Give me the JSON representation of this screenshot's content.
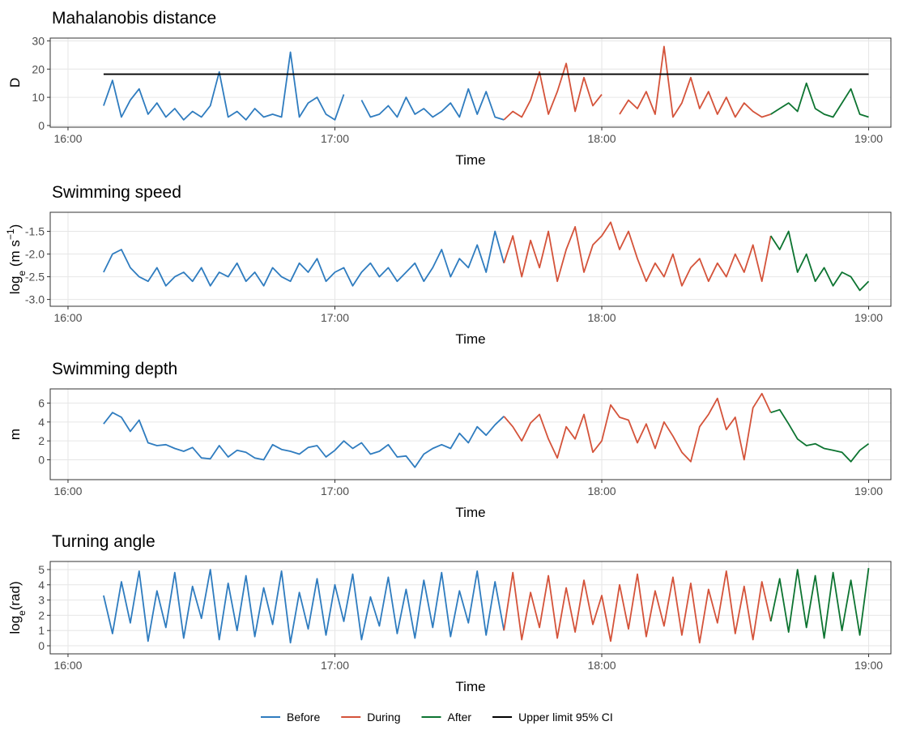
{
  "chart_data": [
    {
      "type": "line",
      "title": "Mahalanobis distance",
      "ylabel": [
        "D"
      ],
      "xlabel": "Time",
      "xlim": [
        "15:56",
        "19:05"
      ],
      "xticks": [
        "16:00",
        "17:00",
        "18:00",
        "19:00"
      ],
      "ylim": [
        -0.6,
        31
      ],
      "yticks": [
        0,
        10,
        20,
        30
      ],
      "grid": true,
      "series": [
        {
          "name": "Before",
          "color": "#2f7cbf",
          "x": [
            "16:08",
            "16:10",
            "16:12",
            "16:14",
            "16:16",
            "16:18",
            "16:20",
            "16:22",
            "16:24",
            "16:26",
            "16:28",
            "16:30",
            "16:32",
            "16:34",
            "16:36",
            "16:38",
            "16:40",
            "16:42",
            "16:44",
            "16:46",
            "16:48",
            "16:50",
            "16:52",
            "16:54",
            "16:56",
            "16:58",
            "17:00",
            "17:02",
            "17:04",
            "17:06",
            "17:08",
            "17:10",
            "17:12",
            "17:14",
            "17:16",
            "17:18",
            "17:20",
            "17:22",
            "17:24",
            "17:26",
            "17:28",
            "17:30",
            "17:32",
            "17:34",
            "17:36",
            "17:38"
          ],
          "values": [
            7,
            16,
            3,
            9,
            13,
            4,
            8,
            3,
            6,
            2,
            5,
            3,
            7,
            19,
            3,
            5,
            2,
            6,
            3,
            4,
            3,
            26,
            3,
            8,
            10,
            4,
            2,
            11,
            null,
            9,
            3,
            4,
            7,
            3,
            10,
            4,
            6,
            3,
            5,
            8,
            3,
            13,
            4,
            12,
            3,
            2
          ]
        },
        {
          "name": "During",
          "color": "#d4533a",
          "x": [
            "17:38",
            "17:40",
            "17:42",
            "17:44",
            "17:46",
            "17:48",
            "17:50",
            "17:52",
            "17:54",
            "17:56",
            "17:58",
            "18:00",
            "18:02",
            "18:04",
            "18:06",
            "18:08",
            "18:10",
            "18:12",
            "18:14",
            "18:16",
            "18:18",
            "18:20",
            "18:22",
            "18:24",
            "18:26",
            "18:28",
            "18:30",
            "18:32",
            "18:34",
            "18:36",
            "18:38"
          ],
          "values": [
            2,
            5,
            3,
            9,
            19,
            4,
            12,
            22,
            5,
            17,
            7,
            11,
            null,
            4,
            9,
            6,
            12,
            4,
            28,
            3,
            8,
            17,
            6,
            12,
            4,
            10,
            3,
            8,
            5,
            3,
            4
          ]
        },
        {
          "name": "After",
          "color": "#0d7431",
          "x": [
            "18:38",
            "18:40",
            "18:42",
            "18:44",
            "18:46",
            "18:48",
            "18:50",
            "18:52",
            "18:54",
            "18:56",
            "18:58",
            "19:00"
          ],
          "values": [
            4,
            6,
            8,
            5,
            15,
            6,
            4,
            3,
            8,
            13,
            4,
            3
          ]
        }
      ],
      "hline": {
        "name": "Upper limit 95% CI",
        "color": "#000000",
        "value": 18.2,
        "x": [
          "16:08",
          "19:00"
        ]
      }
    },
    {
      "type": "line",
      "title": "Swimming speed",
      "ylabel": [
        "log",
        "e",
        " (m s",
        "−1",
        ")"
      ],
      "xlabel": "Time",
      "xlim": [
        "15:56",
        "19:05"
      ],
      "xticks": [
        "16:00",
        "17:00",
        "18:00",
        "19:00"
      ],
      "ylim": [
        -3.15,
        -1.08
      ],
      "yticks": [
        -1.5,
        {
          "value": -2,
          "label": "-2.0"
        },
        -2.5,
        {
          "value": -3,
          "label": "-3.0"
        }
      ],
      "grid": true,
      "series": [
        {
          "name": "Before",
          "color": "#2f7cbf",
          "x": [
            "16:08",
            "16:10",
            "16:12",
            "16:14",
            "16:16",
            "16:18",
            "16:20",
            "16:22",
            "16:24",
            "16:26",
            "16:28",
            "16:30",
            "16:32",
            "16:34",
            "16:36",
            "16:38",
            "16:40",
            "16:42",
            "16:44",
            "16:46",
            "16:48",
            "16:50",
            "16:52",
            "16:54",
            "16:56",
            "16:58",
            "17:00",
            "17:02",
            "17:04",
            "17:06",
            "17:08",
            "17:10",
            "17:12",
            "17:14",
            "17:16",
            "17:18",
            "17:20",
            "17:22",
            "17:24",
            "17:26",
            "17:28",
            "17:30",
            "17:32",
            "17:34",
            "17:36",
            "17:38"
          ],
          "values": [
            -2.4,
            -2.0,
            -1.9,
            -2.3,
            -2.5,
            -2.6,
            -2.3,
            -2.7,
            -2.5,
            -2.4,
            -2.6,
            -2.3,
            -2.7,
            -2.4,
            -2.5,
            -2.2,
            -2.6,
            -2.4,
            -2.7,
            -2.3,
            -2.5,
            -2.6,
            -2.2,
            -2.4,
            -2.1,
            -2.6,
            -2.4,
            -2.3,
            -2.7,
            -2.4,
            -2.2,
            -2.5,
            -2.3,
            -2.6,
            -2.4,
            -2.2,
            -2.6,
            -2.3,
            -1.9,
            -2.5,
            -2.1,
            -2.3,
            -1.8,
            -2.4,
            -1.5,
            -2.2
          ]
        },
        {
          "name": "During",
          "color": "#d4533a",
          "x": [
            "17:38",
            "17:40",
            "17:42",
            "17:44",
            "17:46",
            "17:48",
            "17:50",
            "17:52",
            "17:54",
            "17:56",
            "17:58",
            "18:00",
            "18:02",
            "18:04",
            "18:06",
            "18:08",
            "18:10",
            "18:12",
            "18:14",
            "18:16",
            "18:18",
            "18:20",
            "18:22",
            "18:24",
            "18:26",
            "18:28",
            "18:30",
            "18:32",
            "18:34",
            "18:36",
            "18:38"
          ],
          "values": [
            -2.2,
            -1.6,
            -2.5,
            -1.7,
            -2.3,
            -1.5,
            -2.6,
            -1.9,
            -1.4,
            -2.4,
            -1.8,
            -1.6,
            -1.3,
            -1.9,
            -1.5,
            -2.1,
            -2.6,
            -2.2,
            -2.5,
            -2.0,
            -2.7,
            -2.3,
            -2.1,
            -2.6,
            -2.2,
            -2.5,
            -2.0,
            -2.4,
            -1.8,
            -2.6,
            -1.6
          ]
        },
        {
          "name": "After",
          "color": "#0d7431",
          "x": [
            "18:38",
            "18:40",
            "18:42",
            "18:44",
            "18:46",
            "18:48",
            "18:50",
            "18:52",
            "18:54",
            "18:56",
            "18:58",
            "19:00"
          ],
          "values": [
            -1.6,
            -1.9,
            -1.5,
            -2.4,
            -2.0,
            -2.6,
            -2.3,
            -2.7,
            -2.4,
            -2.5,
            -2.8,
            -2.6
          ]
        }
      ]
    },
    {
      "type": "line",
      "title": "Swimming depth",
      "ylabel": [
        "m"
      ],
      "xlabel": "Time",
      "xlim": [
        "15:56",
        "19:05"
      ],
      "xticks": [
        "16:00",
        "17:00",
        "18:00",
        "19:00"
      ],
      "ylim": [
        -2.1,
        7.5
      ],
      "yticks": [
        0,
        2,
        4,
        6
      ],
      "grid": true,
      "series": [
        {
          "name": "Before",
          "color": "#2f7cbf",
          "x": [
            "16:08",
            "16:10",
            "16:12",
            "16:14",
            "16:16",
            "16:18",
            "16:20",
            "16:22",
            "16:24",
            "16:26",
            "16:28",
            "16:30",
            "16:32",
            "16:34",
            "16:36",
            "16:38",
            "16:40",
            "16:42",
            "16:44",
            "16:46",
            "16:48",
            "16:50",
            "16:52",
            "16:54",
            "16:56",
            "16:58",
            "17:00",
            "17:02",
            "17:04",
            "17:06",
            "17:08",
            "17:10",
            "17:12",
            "17:14",
            "17:16",
            "17:18",
            "17:20",
            "17:22",
            "17:24",
            "17:26",
            "17:28",
            "17:30",
            "17:32",
            "17:34",
            "17:36",
            "17:38"
          ],
          "values": [
            3.8,
            5.0,
            4.5,
            3.0,
            4.2,
            1.8,
            1.5,
            1.6,
            1.2,
            0.9,
            1.3,
            0.2,
            0.1,
            1.5,
            0.3,
            1.0,
            0.8,
            0.2,
            0.0,
            1.6,
            1.1,
            0.9,
            0.6,
            1.3,
            1.5,
            0.3,
            1.0,
            2.0,
            1.2,
            1.8,
            0.6,
            0.9,
            1.6,
            0.3,
            0.4,
            -0.8,
            0.6,
            1.2,
            1.6,
            1.2,
            2.8,
            1.8,
            3.5,
            2.6,
            3.7,
            4.6
          ]
        },
        {
          "name": "During",
          "color": "#d4533a",
          "x": [
            "17:38",
            "17:40",
            "17:42",
            "17:44",
            "17:46",
            "17:48",
            "17:50",
            "17:52",
            "17:54",
            "17:56",
            "17:58",
            "18:00",
            "18:02",
            "18:04",
            "18:06",
            "18:08",
            "18:10",
            "18:12",
            "18:14",
            "18:16",
            "18:18",
            "18:20",
            "18:22",
            "18:24",
            "18:26",
            "18:28",
            "18:30",
            "18:32",
            "18:34",
            "18:36",
            "18:38"
          ],
          "values": [
            4.6,
            3.5,
            2.0,
            3.9,
            4.8,
            2.2,
            0.2,
            3.5,
            2.2,
            4.8,
            0.8,
            2.0,
            5.8,
            4.5,
            4.2,
            1.8,
            3.8,
            1.2,
            4.0,
            2.5,
            0.8,
            -0.2,
            3.5,
            4.8,
            6.5,
            3.2,
            4.5,
            0.0,
            5.5,
            7.0,
            5.0
          ]
        },
        {
          "name": "After",
          "color": "#0d7431",
          "x": [
            "18:38",
            "18:40",
            "18:42",
            "18:44",
            "18:46",
            "18:48",
            "18:50",
            "18:52",
            "18:54",
            "18:56",
            "18:58",
            "19:00"
          ],
          "values": [
            5.0,
            5.3,
            3.8,
            2.2,
            1.5,
            1.7,
            1.2,
            1.0,
            0.8,
            -0.2,
            1.0,
            1.7
          ]
        }
      ]
    },
    {
      "type": "line",
      "title": "Turning angle",
      "ylabel": [
        "log",
        "e",
        "(rad)"
      ],
      "xlabel": "Time",
      "xlim": [
        "15:56",
        "19:05"
      ],
      "xticks": [
        "16:00",
        "17:00",
        "18:00",
        "19:00"
      ],
      "ylim": [
        -0.53,
        5.53
      ],
      "yticks": [
        0,
        1,
        2,
        3,
        4,
        5
      ],
      "grid": true,
      "series": [
        {
          "name": "Before",
          "color": "#2f7cbf",
          "x": [
            "16:08",
            "16:10",
            "16:12",
            "16:14",
            "16:16",
            "16:18",
            "16:20",
            "16:22",
            "16:24",
            "16:26",
            "16:28",
            "16:30",
            "16:32",
            "16:34",
            "16:36",
            "16:38",
            "16:40",
            "16:42",
            "16:44",
            "16:46",
            "16:48",
            "16:50",
            "16:52",
            "16:54",
            "16:56",
            "16:58",
            "17:00",
            "17:02",
            "17:04",
            "17:06",
            "17:08",
            "17:10",
            "17:12",
            "17:14",
            "17:16",
            "17:18",
            "17:20",
            "17:22",
            "17:24",
            "17:26",
            "17:28",
            "17:30",
            "17:32",
            "17:34",
            "17:36",
            "17:38"
          ],
          "values": [
            3.3,
            0.8,
            4.2,
            1.5,
            4.9,
            0.3,
            3.6,
            1.2,
            4.8,
            0.5,
            3.9,
            1.8,
            5.0,
            0.4,
            4.1,
            1.0,
            4.6,
            0.6,
            3.8,
            1.4,
            4.9,
            0.2,
            3.5,
            1.1,
            4.4,
            0.7,
            4.0,
            1.6,
            4.7,
            0.4,
            3.2,
            1.3,
            4.5,
            0.8,
            3.7,
            0.5,
            4.3,
            1.2,
            4.8,
            0.6,
            3.6,
            1.5,
            4.9,
            0.7,
            4.2,
            1.0
          ]
        },
        {
          "name": "During",
          "color": "#d4533a",
          "x": [
            "17:38",
            "17:40",
            "17:42",
            "17:44",
            "17:46",
            "17:48",
            "17:50",
            "17:52",
            "17:54",
            "17:56",
            "17:58",
            "18:00",
            "18:02",
            "18:04",
            "18:06",
            "18:08",
            "18:10",
            "18:12",
            "18:14",
            "18:16",
            "18:18",
            "18:20",
            "18:22",
            "18:24",
            "18:26",
            "18:28",
            "18:30",
            "18:32",
            "18:34",
            "18:36",
            "18:38"
          ],
          "values": [
            1.0,
            4.8,
            0.4,
            3.5,
            1.2,
            4.6,
            0.5,
            3.8,
            0.9,
            4.3,
            1.4,
            3.3,
            0.3,
            4.0,
            1.1,
            4.7,
            0.6,
            3.6,
            1.3,
            4.5,
            0.7,
            4.1,
            0.2,
            3.7,
            1.5,
            4.9,
            0.8,
            3.9,
            0.4,
            4.2,
            1.6
          ]
        },
        {
          "name": "After",
          "color": "#0d7431",
          "x": [
            "18:38",
            "18:40",
            "18:42",
            "18:44",
            "18:46",
            "18:48",
            "18:50",
            "18:52",
            "18:54",
            "18:56",
            "18:58",
            "19:00"
          ],
          "values": [
            1.6,
            4.4,
            0.9,
            5.0,
            1.2,
            4.6,
            0.5,
            4.8,
            1.0,
            4.3,
            0.7,
            5.1
          ]
        }
      ]
    }
  ]
}
